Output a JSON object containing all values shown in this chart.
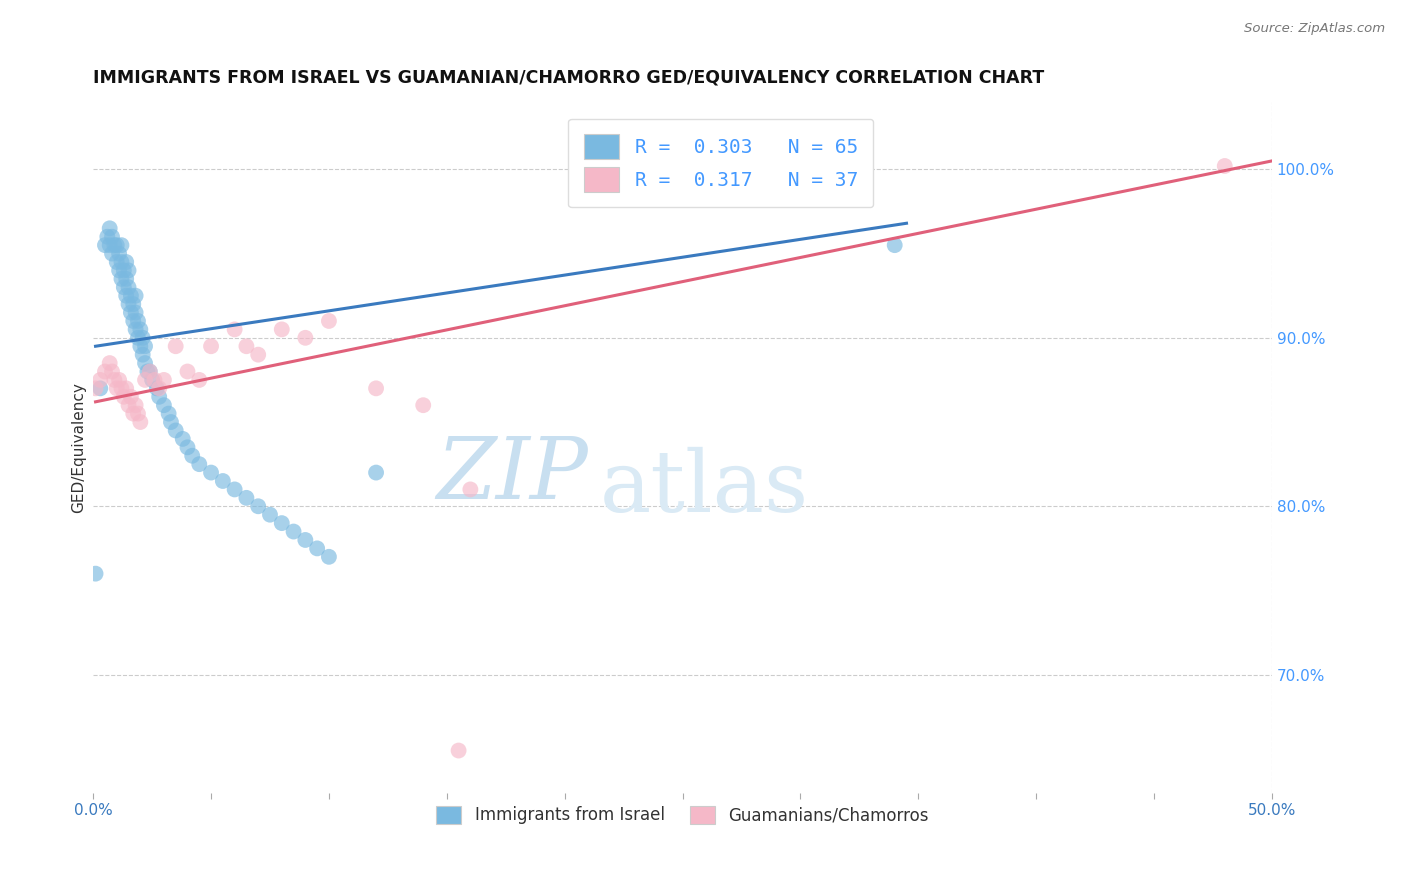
{
  "title": "IMMIGRANTS FROM ISRAEL VS GUAMANIAN/CHAMORRO GED/EQUIVALENCY CORRELATION CHART",
  "source": "Source: ZipAtlas.com",
  "ylabel": "GED/Equivalency",
  "xmin": 0.0,
  "xmax": 0.5,
  "ymin": 0.63,
  "ymax": 1.04,
  "xtick_labels": [
    "0.0%",
    "",
    "",
    "",
    "",
    "",
    "",
    "",
    "",
    "50.0%"
  ],
  "xtick_vals": [
    0.0,
    0.05,
    0.1,
    0.15,
    0.2,
    0.25,
    0.3,
    0.35,
    0.4,
    0.5
  ],
  "ytick_labels_right": [
    "70.0%",
    "80.0%",
    "90.0%",
    "100.0%"
  ],
  "ytick_vals_right": [
    0.7,
    0.8,
    0.9,
    1.0
  ],
  "blue_color": "#7ab9e0",
  "pink_color": "#f5b8c8",
  "blue_line_color": "#3a7abf",
  "pink_line_color": "#e0607a",
  "legend_color": "#4499ff",
  "watermark_zip": "ZIP",
  "watermark_atlas": "atlas",
  "watermark_color": "#c8dff0",
  "blue_scatter_x": [
    0.001,
    0.003,
    0.005,
    0.006,
    0.007,
    0.007,
    0.008,
    0.008,
    0.009,
    0.01,
    0.01,
    0.011,
    0.011,
    0.012,
    0.012,
    0.012,
    0.013,
    0.013,
    0.014,
    0.014,
    0.014,
    0.015,
    0.015,
    0.015,
    0.016,
    0.016,
    0.017,
    0.017,
    0.018,
    0.018,
    0.018,
    0.019,
    0.019,
    0.02,
    0.02,
    0.021,
    0.021,
    0.022,
    0.022,
    0.023,
    0.024,
    0.025,
    0.027,
    0.028,
    0.03,
    0.032,
    0.033,
    0.035,
    0.038,
    0.04,
    0.042,
    0.045,
    0.05,
    0.055,
    0.06,
    0.065,
    0.07,
    0.075,
    0.08,
    0.085,
    0.09,
    0.095,
    0.1,
    0.12,
    0.34
  ],
  "blue_scatter_y": [
    0.76,
    0.87,
    0.955,
    0.96,
    0.955,
    0.965,
    0.95,
    0.96,
    0.955,
    0.945,
    0.955,
    0.94,
    0.95,
    0.935,
    0.945,
    0.955,
    0.93,
    0.94,
    0.925,
    0.935,
    0.945,
    0.92,
    0.93,
    0.94,
    0.915,
    0.925,
    0.91,
    0.92,
    0.905,
    0.915,
    0.925,
    0.9,
    0.91,
    0.895,
    0.905,
    0.89,
    0.9,
    0.885,
    0.895,
    0.88,
    0.88,
    0.875,
    0.87,
    0.865,
    0.86,
    0.855,
    0.85,
    0.845,
    0.84,
    0.835,
    0.83,
    0.825,
    0.82,
    0.815,
    0.81,
    0.805,
    0.8,
    0.795,
    0.79,
    0.785,
    0.78,
    0.775,
    0.77,
    0.82,
    0.955
  ],
  "pink_scatter_x": [
    0.001,
    0.003,
    0.005,
    0.007,
    0.008,
    0.009,
    0.01,
    0.011,
    0.012,
    0.013,
    0.014,
    0.015,
    0.016,
    0.017,
    0.018,
    0.019,
    0.02,
    0.022,
    0.024,
    0.026,
    0.028,
    0.03,
    0.035,
    0.04,
    0.045,
    0.05,
    0.06,
    0.065,
    0.07,
    0.08,
    0.09,
    0.1,
    0.12,
    0.14,
    0.16,
    0.48,
    0.155
  ],
  "pink_scatter_y": [
    0.87,
    0.875,
    0.88,
    0.885,
    0.88,
    0.875,
    0.87,
    0.875,
    0.87,
    0.865,
    0.87,
    0.86,
    0.865,
    0.855,
    0.86,
    0.855,
    0.85,
    0.875,
    0.88,
    0.875,
    0.87,
    0.875,
    0.895,
    0.88,
    0.875,
    0.895,
    0.905,
    0.895,
    0.89,
    0.905,
    0.9,
    0.91,
    0.87,
    0.86,
    0.81,
    1.002,
    0.655
  ],
  "blue_line_x": [
    0.001,
    0.345
  ],
  "blue_line_y": [
    0.895,
    0.968
  ],
  "pink_line_x": [
    0.001,
    0.5
  ],
  "pink_line_y": [
    0.862,
    1.005
  ]
}
